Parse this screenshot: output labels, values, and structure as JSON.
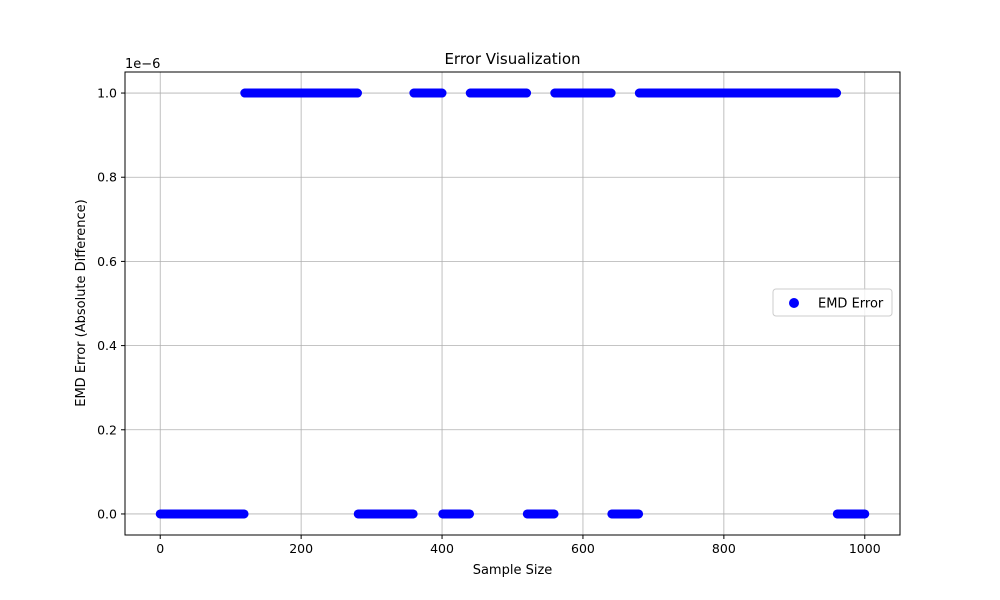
{
  "chart_data": {
    "type": "scatter",
    "title": "Error Visualization",
    "xlabel": "Sample Size",
    "ylabel": "EMD Error (Absolute Difference)",
    "y_offset_label": "1e−6",
    "xlim": [
      -50,
      1050
    ],
    "ylim": [
      -5e-08,
      1.05e-06
    ],
    "x_ticks": [
      0,
      200,
      400,
      600,
      800,
      1000
    ],
    "x_tick_labels": [
      "0",
      "200",
      "400",
      "600",
      "800",
      "1000"
    ],
    "y_ticks": [
      0,
      2e-07,
      4e-07,
      6e-07,
      8e-07,
      1e-06
    ],
    "y_tick_labels": [
      "0.0",
      "0.2",
      "0.4",
      "0.6",
      "0.8",
      "1.0"
    ],
    "grid": true,
    "legend_position": "center-right",
    "series": [
      {
        "name": "EMD Error",
        "color": "#0000ff",
        "x_range": [
          0,
          1000
        ],
        "x_step": 1,
        "value_high": 1e-06,
        "value_low": 0,
        "high_x_ranges": [
          [
            120,
            280
          ],
          [
            360,
            400
          ],
          [
            440,
            520
          ],
          [
            560,
            640
          ],
          [
            680,
            960
          ]
        ]
      }
    ]
  }
}
